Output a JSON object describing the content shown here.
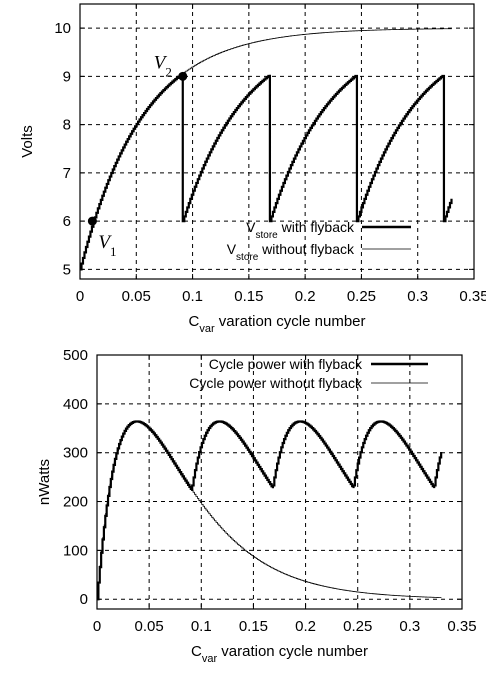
{
  "chart_data": [
    {
      "type": "line",
      "ylabel": "Volts",
      "xlabel": {
        "main": "C",
        "sub": "var",
        "rest": " varation cycle number"
      },
      "xlim": [
        0,
        0.35
      ],
      "ylim": [
        4.8,
        10.5
      ],
      "xticks": [
        "0",
        "0.05",
        "0.1",
        "0.15",
        "0.2",
        "0.25",
        "0.3",
        "0.35"
      ],
      "xtick_values": [
        0,
        0.05,
        0.1,
        0.15,
        0.2,
        0.25,
        0.3,
        0.35
      ],
      "yticks": [
        "5",
        "6",
        "7",
        "8",
        "9",
        "10"
      ],
      "ytick_values": [
        5,
        6,
        7,
        8,
        9,
        10
      ],
      "grid": true,
      "legend_position": "bottom-right",
      "series": [
        {
          "legend": {
            "main": "V",
            "sub": "store",
            "rest": " with flyback"
          },
          "style": "thick",
          "model": {
            "kind": "charge",
            "v_start": 5,
            "v_inf": 10,
            "tau": 0.0545,
            "steps_per_cycle": 60,
            "step": 0.0013333
          },
          "reset_points": [
            {
              "x": 0.0913,
              "from": 9,
              "to": 6
            },
            {
              "x": 0.1687,
              "from": 9,
              "to": 6
            },
            {
              "x": 0.246,
              "from": 9,
              "to": 6
            },
            {
              "x": 0.3233,
              "from": 9,
              "to": 6
            }
          ],
          "x_end": 0.33,
          "y_end": 6.83
        },
        {
          "legend": {
            "main": "V",
            "sub": "store",
            "rest": " without flyback"
          },
          "style": "thin",
          "model": {
            "kind": "charge",
            "v_start": 5,
            "v_inf": 10,
            "tau": 0.0545
          },
          "x_start": 0.0913,
          "x_end": 0.33
        }
      ],
      "annotations": [
        {
          "label": "V",
          "sub": "1",
          "x": 0.011,
          "y": 6.0
        },
        {
          "label": "V",
          "sub": "2",
          "x": 0.0913,
          "y": 9.0
        }
      ]
    },
    {
      "type": "line",
      "ylabel": "nWatts",
      "xlabel": {
        "main": "C",
        "sub": "var",
        "rest": " varation cycle number"
      },
      "xlim": [
        0,
        0.35
      ],
      "ylim": [
        -20,
        500
      ],
      "xticks": [
        "0",
        "0.05",
        "0.1",
        "0.15",
        "0.2",
        "0.25",
        "0.3",
        "0.35"
      ],
      "xtick_values": [
        0,
        0.05,
        0.1,
        0.15,
        0.2,
        0.25,
        0.3,
        0.35
      ],
      "yticks": [
        "0",
        "100",
        "200",
        "300",
        "400",
        "500"
      ],
      "ytick_values": [
        0,
        100,
        200,
        300,
        400,
        500
      ],
      "grid": true,
      "legend_position": "top-right",
      "series": [
        {
          "name": "Cycle power with flyback",
          "style": "thick",
          "model": {
            "kind": "power",
            "scale": 1456,
            "v_inf": 10
          },
          "x_end": 0.33
        },
        {
          "name": "Cycle power without flyback",
          "style": "thin",
          "model": {
            "kind": "power",
            "scale": 1456,
            "v_inf": 10
          },
          "x_end": 0.33
        }
      ]
    }
  ]
}
